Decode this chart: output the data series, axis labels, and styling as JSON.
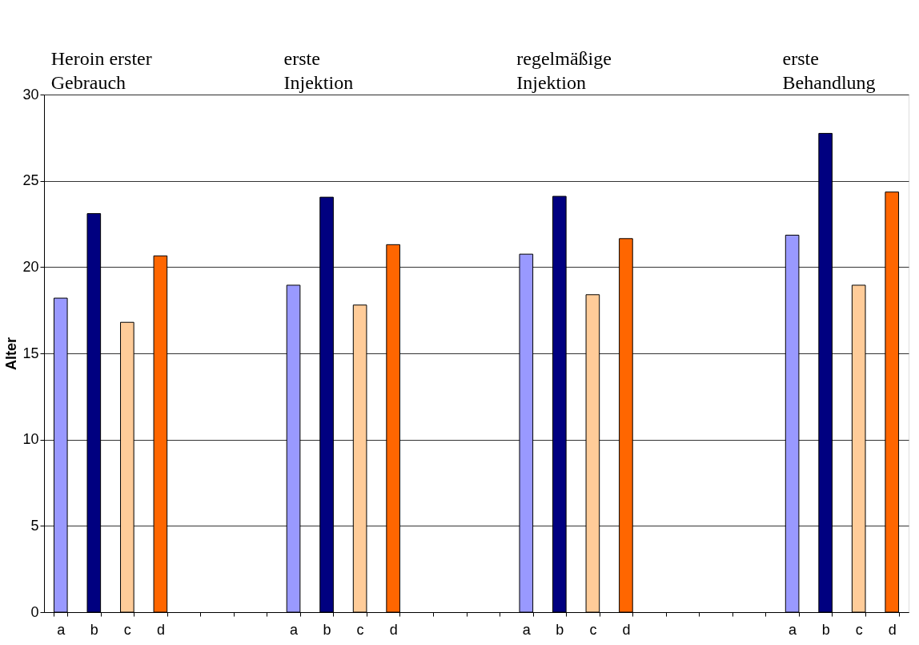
{
  "chart_data": {
    "type": "bar",
    "ylabel": "Alter",
    "categories": [
      "a",
      "b",
      "c",
      "d",
      null,
      null,
      null,
      "a",
      "b",
      "c",
      "d",
      null,
      null,
      null,
      "a",
      "b",
      "c",
      "d",
      null,
      null,
      null,
      null,
      "a",
      "b",
      "c",
      "d"
    ],
    "values": [
      18.2,
      23.1,
      16.8,
      20.65,
      null,
      null,
      null,
      18.95,
      24.05,
      17.8,
      21.3,
      null,
      null,
      null,
      20.75,
      24.1,
      18.4,
      21.65,
      null,
      null,
      null,
      null,
      21.85,
      27.75,
      18.95,
      24.35
    ],
    "colors": [
      "#9999ff",
      "#000080",
      "#ffcc99",
      "#ff6600",
      null,
      null,
      null,
      "#9999ff",
      "#000080",
      "#ffcc99",
      "#ff6600",
      null,
      null,
      null,
      "#9999ff",
      "#000080",
      "#ffcc99",
      "#ff6600",
      null,
      null,
      null,
      null,
      "#9999ff",
      "#000080",
      "#ffcc99",
      "#ff6600"
    ],
    "ylim": [
      0,
      30
    ],
    "yticks": [
      0,
      5,
      10,
      15,
      20,
      25,
      30
    ],
    "grid": "y",
    "annotations": [
      "Heroin erster\nGebrauch",
      "erste\nInjektion",
      "regelmäßige\nInjektion",
      "erste\nBehandlung"
    ]
  }
}
